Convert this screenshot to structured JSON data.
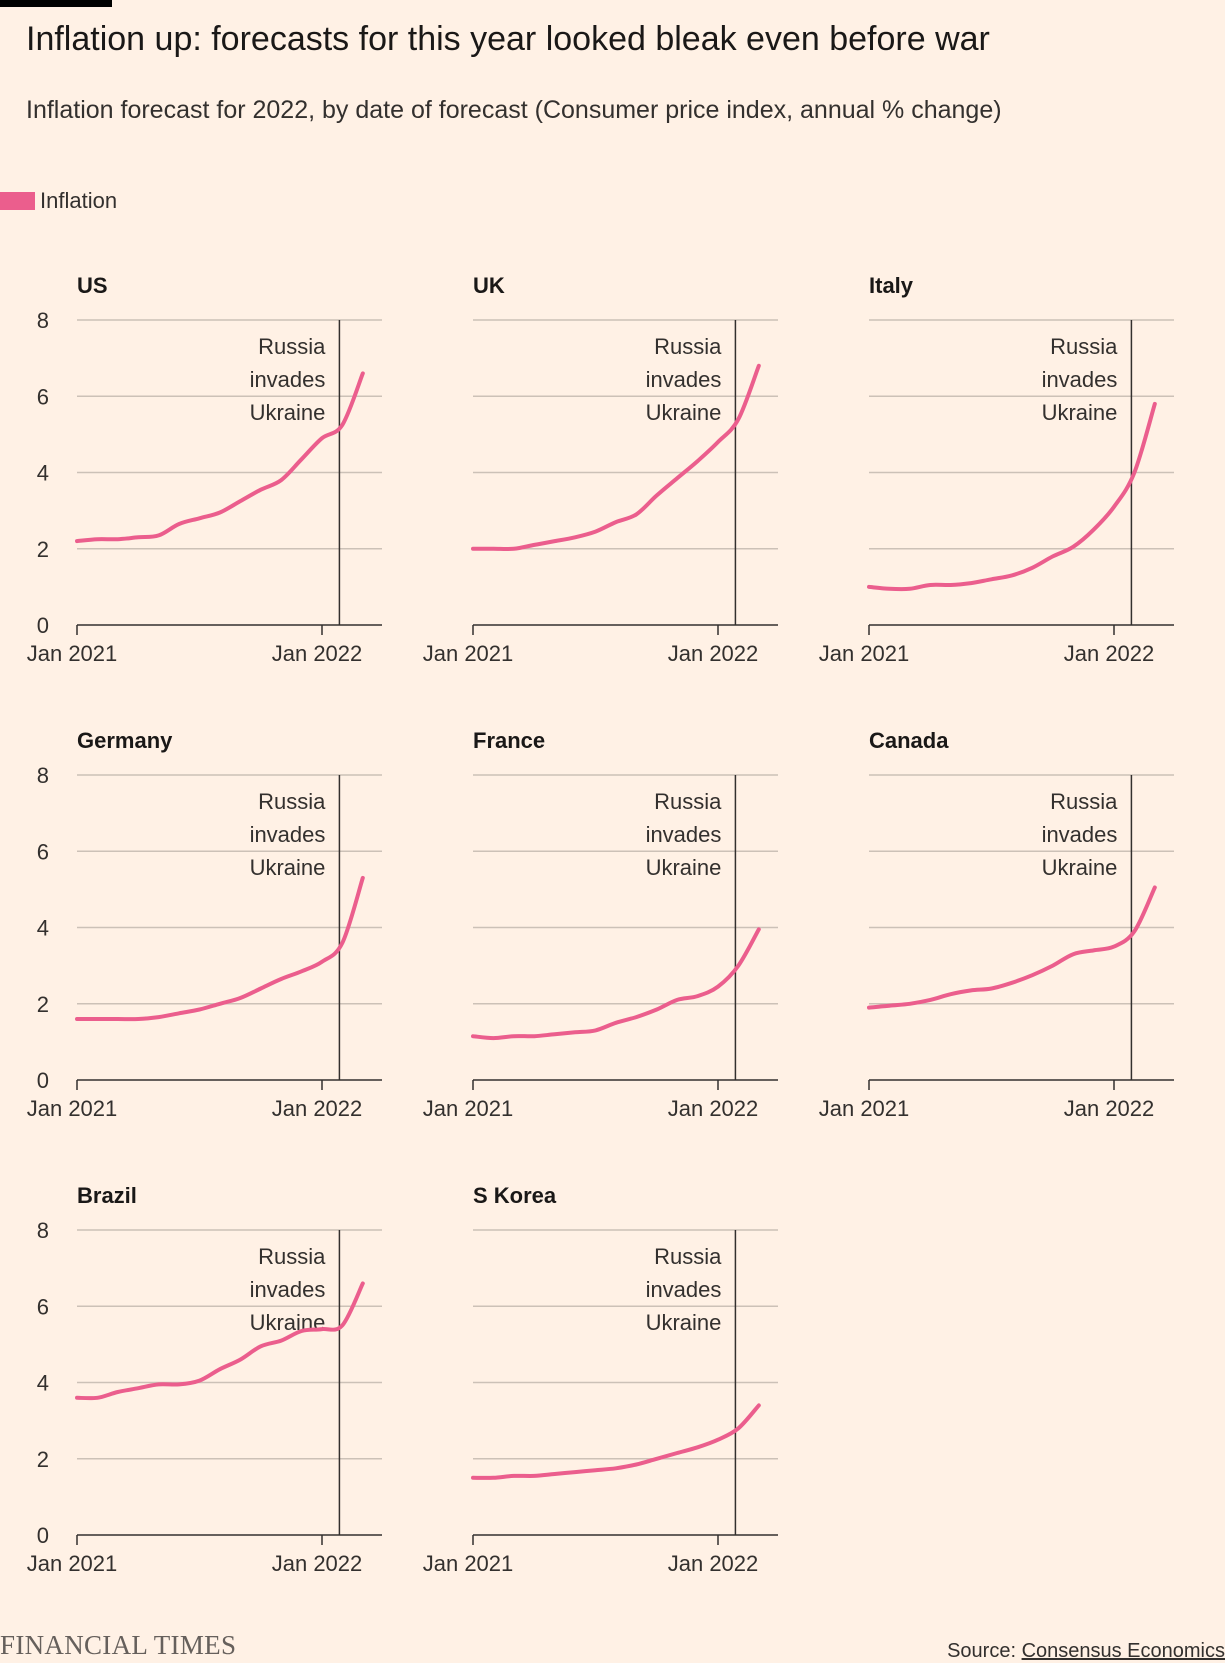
{
  "title": "Inflation up: forecasts for this year looked bleak even before war",
  "subtitle": "Inflation forecast for 2022, by date of forecast (Consumer price index, annual % change)",
  "legend": {
    "label": "Inflation",
    "color": "#eb5e8d"
  },
  "footer": {
    "logo": "FINANCIAL TIMES",
    "source_prefix": "Source: ",
    "source_name": "Consensus Economics"
  },
  "colors": {
    "line": "#eb5e8d",
    "grid": "#ccc1b7",
    "axis": "#33302e",
    "background": "#fff1e5"
  },
  "chart_data": [
    {
      "type": "line",
      "title": "US",
      "x_ticks": [
        "Jan 2021",
        "Jan 2022"
      ],
      "y_ticks": [
        0,
        2,
        4,
        6,
        8
      ],
      "ylim": [
        0,
        8
      ],
      "xlim": [
        "2021-01",
        "2022-03"
      ],
      "annotation": {
        "x": "2022-02",
        "lines": [
          "Russia",
          "invades",
          "Ukraine"
        ]
      },
      "series": [
        {
          "x": [
            "2021-01",
            "2021-02",
            "2021-03",
            "2021-04",
            "2021-05",
            "2021-06",
            "2021-07",
            "2021-08",
            "2021-09",
            "2021-10",
            "2021-11",
            "2021-12",
            "2022-01",
            "2022-02",
            "2022-03"
          ],
          "values": [
            2.2,
            2.25,
            2.25,
            2.3,
            2.35,
            2.65,
            2.8,
            2.95,
            3.25,
            3.55,
            3.8,
            4.35,
            4.9,
            5.25,
            6.6
          ]
        }
      ]
    },
    {
      "type": "line",
      "title": "UK",
      "x_ticks": [
        "Jan 2021",
        "Jan 2022"
      ],
      "y_ticks": [
        0,
        2,
        4,
        6,
        8
      ],
      "ylim": [
        0,
        8
      ],
      "xlim": [
        "2021-01",
        "2022-03"
      ],
      "annotation": {
        "x": "2022-02",
        "lines": [
          "Russia",
          "invades",
          "Ukraine"
        ]
      },
      "series": [
        {
          "x": [
            "2021-01",
            "2021-02",
            "2021-03",
            "2021-04",
            "2021-05",
            "2021-06",
            "2021-07",
            "2021-08",
            "2021-09",
            "2021-10",
            "2021-11",
            "2021-12",
            "2022-01",
            "2022-02",
            "2022-03"
          ],
          "values": [
            2.0,
            2.0,
            2.0,
            2.1,
            2.2,
            2.3,
            2.45,
            2.7,
            2.9,
            3.4,
            3.85,
            4.3,
            4.8,
            5.4,
            6.8
          ]
        }
      ]
    },
    {
      "type": "line",
      "title": "Italy",
      "x_ticks": [
        "Jan 2021",
        "Jan 2022"
      ],
      "y_ticks": [
        0,
        2,
        4,
        6,
        8
      ],
      "ylim": [
        0,
        8
      ],
      "xlim": [
        "2021-01",
        "2022-03"
      ],
      "annotation": {
        "x": "2022-02",
        "lines": [
          "Russia",
          "invades",
          "Ukraine"
        ]
      },
      "series": [
        {
          "x": [
            "2021-01",
            "2021-02",
            "2021-03",
            "2021-04",
            "2021-05",
            "2021-06",
            "2021-07",
            "2021-08",
            "2021-09",
            "2021-10",
            "2021-11",
            "2021-12",
            "2022-01",
            "2022-02",
            "2022-03"
          ],
          "values": [
            1.0,
            0.95,
            0.95,
            1.05,
            1.05,
            1.1,
            1.2,
            1.3,
            1.5,
            1.8,
            2.05,
            2.5,
            3.1,
            4.0,
            5.8
          ]
        }
      ]
    },
    {
      "type": "line",
      "title": "Germany",
      "x_ticks": [
        "Jan 2021",
        "Jan 2022"
      ],
      "y_ticks": [
        0,
        2,
        4,
        6,
        8
      ],
      "ylim": [
        0,
        8
      ],
      "xlim": [
        "2021-01",
        "2022-03"
      ],
      "annotation": {
        "x": "2022-02",
        "lines": [
          "Russia",
          "invades",
          "Ukraine"
        ]
      },
      "series": [
        {
          "x": [
            "2021-01",
            "2021-02",
            "2021-03",
            "2021-04",
            "2021-05",
            "2021-06",
            "2021-07",
            "2021-08",
            "2021-09",
            "2021-10",
            "2021-11",
            "2021-12",
            "2022-01",
            "2022-02",
            "2022-03"
          ],
          "values": [
            1.6,
            1.6,
            1.6,
            1.6,
            1.65,
            1.75,
            1.85,
            2.0,
            2.15,
            2.4,
            2.65,
            2.85,
            3.1,
            3.6,
            5.3
          ]
        }
      ]
    },
    {
      "type": "line",
      "title": "France",
      "x_ticks": [
        "Jan 2021",
        "Jan 2022"
      ],
      "y_ticks": [
        0,
        2,
        4,
        6,
        8
      ],
      "ylim": [
        0,
        8
      ],
      "xlim": [
        "2021-01",
        "2022-03"
      ],
      "annotation": {
        "x": "2022-02",
        "lines": [
          "Russia",
          "invades",
          "Ukraine"
        ]
      },
      "series": [
        {
          "x": [
            "2021-01",
            "2021-02",
            "2021-03",
            "2021-04",
            "2021-05",
            "2021-06",
            "2021-07",
            "2021-08",
            "2021-09",
            "2021-10",
            "2021-11",
            "2021-12",
            "2022-01",
            "2022-02",
            "2022-03"
          ],
          "values": [
            1.15,
            1.1,
            1.15,
            1.15,
            1.2,
            1.25,
            1.3,
            1.5,
            1.65,
            1.85,
            2.1,
            2.2,
            2.45,
            3.0,
            3.95
          ]
        }
      ]
    },
    {
      "type": "line",
      "title": "Canada",
      "x_ticks": [
        "Jan 2021",
        "Jan 2022"
      ],
      "y_ticks": [
        0,
        2,
        4,
        6,
        8
      ],
      "ylim": [
        0,
        8
      ],
      "xlim": [
        "2021-01",
        "2022-03"
      ],
      "annotation": {
        "x": "2022-02",
        "lines": [
          "Russia",
          "invades",
          "Ukraine"
        ]
      },
      "series": [
        {
          "x": [
            "2021-01",
            "2021-02",
            "2021-03",
            "2021-04",
            "2021-05",
            "2021-06",
            "2021-07",
            "2021-08",
            "2021-09",
            "2021-10",
            "2021-11",
            "2021-12",
            "2022-01",
            "2022-02",
            "2022-03"
          ],
          "values": [
            1.9,
            1.95,
            2.0,
            2.1,
            2.25,
            2.35,
            2.4,
            2.55,
            2.75,
            3.0,
            3.3,
            3.4,
            3.5,
            3.9,
            5.05
          ]
        }
      ]
    },
    {
      "type": "line",
      "title": "Brazil",
      "x_ticks": [
        "Jan 2021",
        "Jan 2022"
      ],
      "y_ticks": [
        0,
        2,
        4,
        6,
        8
      ],
      "ylim": [
        0,
        8
      ],
      "xlim": [
        "2021-01",
        "2022-03"
      ],
      "annotation": {
        "x": "2022-02",
        "lines": [
          "Russia",
          "invades",
          "Ukraine"
        ]
      },
      "series": [
        {
          "x": [
            "2021-01",
            "2021-02",
            "2021-03",
            "2021-04",
            "2021-05",
            "2021-06",
            "2021-07",
            "2021-08",
            "2021-09",
            "2021-10",
            "2021-11",
            "2021-12",
            "2022-01",
            "2022-02",
            "2022-03"
          ],
          "values": [
            3.6,
            3.6,
            3.75,
            3.85,
            3.95,
            3.95,
            4.05,
            4.35,
            4.6,
            4.95,
            5.1,
            5.35,
            5.4,
            5.5,
            6.6
          ]
        }
      ]
    },
    {
      "type": "line",
      "title": "S Korea",
      "x_ticks": [
        "Jan 2021",
        "Jan 2022"
      ],
      "y_ticks": [
        0,
        2,
        4,
        6,
        8
      ],
      "ylim": [
        0,
        8
      ],
      "xlim": [
        "2021-01",
        "2022-03"
      ],
      "annotation": {
        "x": "2022-02",
        "lines": [
          "Russia",
          "invades",
          "Ukraine"
        ]
      },
      "series": [
        {
          "x": [
            "2021-01",
            "2021-02",
            "2021-03",
            "2021-04",
            "2021-05",
            "2021-06",
            "2021-07",
            "2021-08",
            "2021-09",
            "2021-10",
            "2021-11",
            "2021-12",
            "2022-01",
            "2022-02",
            "2022-03"
          ],
          "values": [
            1.5,
            1.5,
            1.55,
            1.55,
            1.6,
            1.65,
            1.7,
            1.75,
            1.85,
            2.0,
            2.15,
            2.3,
            2.5,
            2.8,
            3.4
          ]
        }
      ]
    }
  ]
}
